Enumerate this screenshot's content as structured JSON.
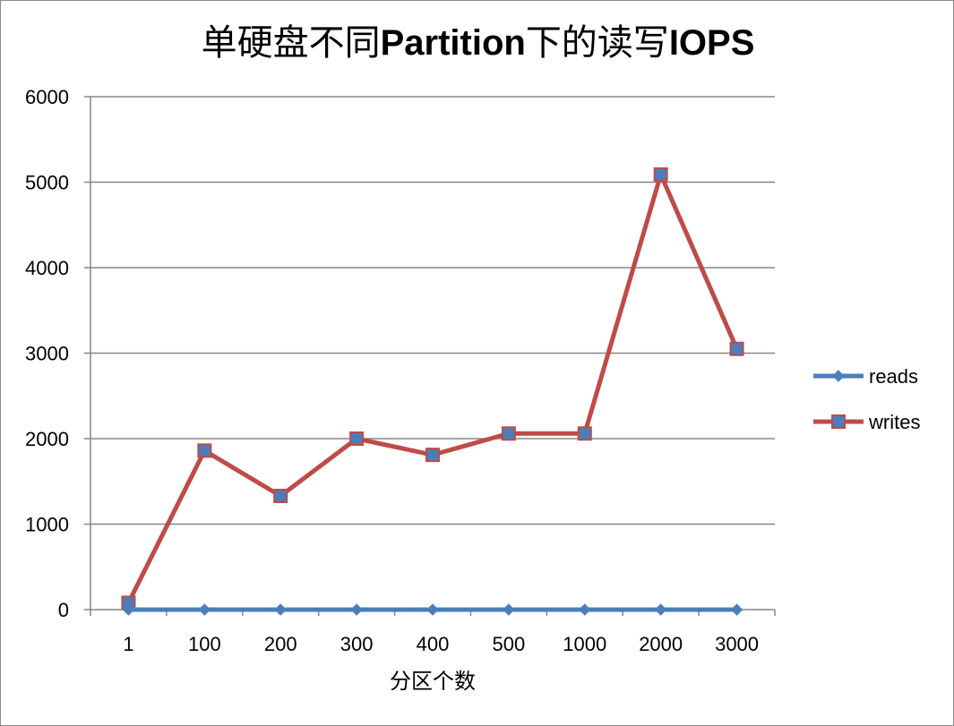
{
  "chart_data": {
    "type": "line",
    "title_cn_prefix": "单硬盘不同",
    "title_latin": "Partition",
    "title_cn_suffix": "下的读写",
    "title_latin2": "IOPS",
    "xlabel": "分区个数",
    "ylabel": "",
    "categories": [
      "1",
      "100",
      "200",
      "300",
      "400",
      "500",
      "1000",
      "2000",
      "3000"
    ],
    "ylim": [
      0,
      6000
    ],
    "yticks": [
      0,
      1000,
      2000,
      3000,
      4000,
      5000,
      6000
    ],
    "grid": true,
    "legend_position": "right",
    "series": [
      {
        "name": "reads",
        "color": "#4a7ebb",
        "marker": "diamond",
        "values": [
          0,
          0,
          0,
          0,
          0,
          0,
          0,
          0,
          0
        ]
      },
      {
        "name": "writes",
        "color": "#be4b48",
        "marker": "square",
        "values": [
          80,
          1860,
          1330,
          2000,
          1810,
          2060,
          2060,
          5090,
          3050
        ]
      }
    ]
  }
}
